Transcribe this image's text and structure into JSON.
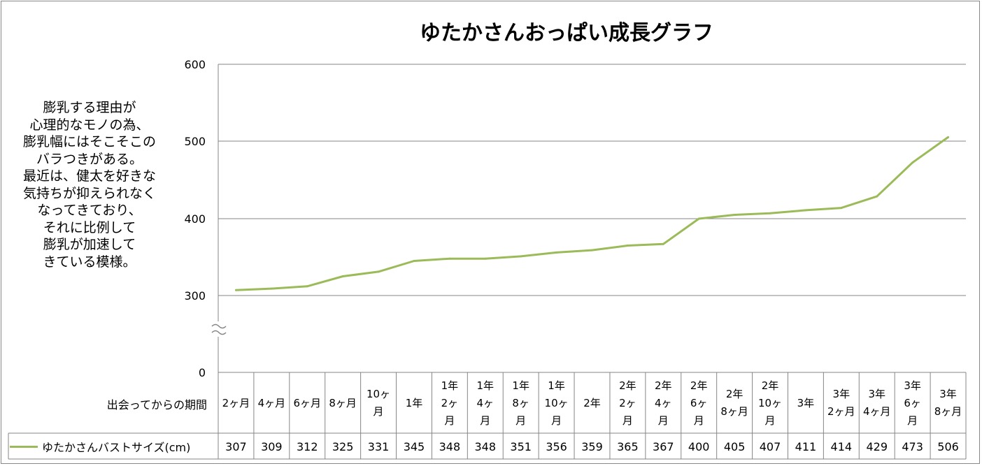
{
  "chart_data": {
    "type": "line",
    "title": "ゆたかさんおっぱい成長グラフ",
    "xlabel": "出会ってからの期間",
    "ylabel": "",
    "y_ticks": [
      "0",
      "300",
      "400",
      "500",
      "600"
    ],
    "ylim": [
      300,
      600
    ],
    "y_axis_break": true,
    "grid": true,
    "legend_placement": "data-table",
    "categories": [
      "2ヶ月",
      "4ヶ月",
      "6ヶ月",
      "8ヶ月",
      "10ヶ\n月",
      "1年",
      "1年\n2ヶ\n月",
      "1年\n4ヶ\n月",
      "1年\n8ヶ\n月",
      "1年\n10ヶ\n月",
      "2年",
      "2年\n2ヶ\n月",
      "2年\n4ヶ\n月",
      "2年\n6ヶ\n月",
      "2年\n8ヶ月",
      "2年\n10ヶ\n月",
      "3年",
      "3年\n2ヶ月",
      "3年\n4ヶ月",
      "3年\n6ヶ\n月",
      "3年\n8ヶ月"
    ],
    "series": [
      {
        "name": "ゆたかさんバストサイズ(cm)",
        "color": "#9BBB59",
        "values": [
          307,
          309,
          312,
          325,
          331,
          345,
          348,
          348,
          351,
          356,
          359,
          365,
          367,
          400,
          405,
          407,
          411,
          414,
          429,
          473,
          506
        ]
      }
    ]
  },
  "annotation": "膨乳する理由が\n心理的なモノの為、\n膨乳幅にはそこそこの\nバラつきがある。\n最近は、健太を好きな\n気持ちが抑えられなく\nなってきており、\nそれに比例して\n膨乳が加速して\nきている模様。"
}
